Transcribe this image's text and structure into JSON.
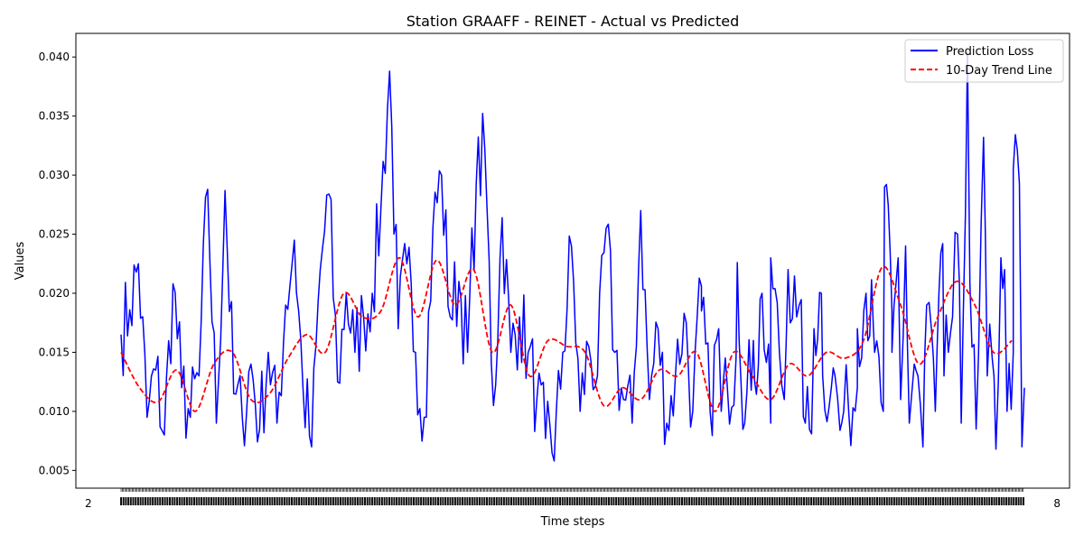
{
  "chart_data": {
    "type": "line",
    "title": "Station GRAAFF - REINET - Actual vs Predicted",
    "xlabel": "Time steps",
    "ylabel": "Values",
    "xlim": [
      0,
      730
    ],
    "ylim": [
      0.0035,
      0.042
    ],
    "yticks": [
      0.005,
      0.01,
      0.015,
      0.02,
      0.025,
      0.03,
      0.035,
      0.04
    ],
    "ytick_labels": [
      "0.005",
      "0.010",
      "0.015",
      "0.020",
      "0.025",
      "0.030",
      "0.035",
      "0.040"
    ],
    "xtick_left_label": "2",
    "xtick_right_label": "8",
    "grid": false,
    "legend": {
      "placement": "top-right"
    },
    "series": [
      {
        "name": "Prediction Loss",
        "color": "#0000ff",
        "style": "solid",
        "x": [
          0,
          7,
          14,
          21,
          28,
          35,
          42,
          49,
          56,
          63,
          70,
          77,
          84,
          91,
          98,
          105,
          112,
          119,
          126,
          133,
          140,
          147,
          154,
          161,
          168,
          175,
          182,
          189,
          196,
          203,
          210,
          217,
          224,
          231,
          238,
          245,
          252,
          259,
          266,
          273,
          280,
          287,
          294,
          301,
          308,
          315,
          322,
          329,
          336,
          343,
          350,
          357,
          364,
          371,
          378,
          385,
          392,
          399,
          406,
          413,
          420,
          427,
          434,
          441,
          448,
          455,
          462,
          469,
          476,
          483,
          490,
          497,
          504,
          511,
          518,
          525,
          532,
          539,
          546,
          553,
          560,
          567,
          574,
          581,
          588,
          595,
          602,
          609,
          616,
          623,
          630,
          637,
          644,
          651,
          658,
          665,
          672,
          679,
          686,
          693,
          700,
          707,
          714,
          721,
          728
        ],
        "y": [
          0.0165,
          0.0186,
          0.0225,
          0.0095,
          0.0135,
          0.008,
          0.0208,
          0.012,
          0.0095,
          0.013,
          0.0288,
          0.009,
          0.0287,
          0.0115,
          0.0095,
          0.014,
          0.0085,
          0.015,
          0.009,
          0.019,
          0.0245,
          0.012,
          0.007,
          0.022,
          0.0284,
          0.0125,
          0.02,
          0.015,
          0.018,
          0.02,
          0.0272,
          0.0388,
          0.017,
          0.0225,
          0.015,
          0.0095,
          0.0255,
          0.03,
          0.018,
          0.021,
          0.015,
          0.0293,
          0.0322,
          0.0105,
          0.0264,
          0.015,
          0.018,
          0.015,
          0.011,
          0.0077,
          0.0058,
          0.015,
          0.024,
          0.01,
          0.0155,
          0.013,
          0.0255,
          0.015,
          0.011,
          0.009,
          0.027,
          0.011,
          0.017,
          0.009,
          0.013,
          0.0183,
          0.01,
          0.0206,
          0.01,
          0.017,
          0.012,
          0.0145,
          0.009,
          0.016,
          0.02,
          0.009,
          0.015,
          0.022,
          0.018,
          0.009,
          0.017,
          0.013,
          0.012,
          0.0084,
          0.01,
          0.012,
          0.02,
          0.015,
          0.01,
          0.0185,
          0.011,
          0.009,
          0.013,
          0.019,
          0.01,
          0.013,
          0.018,
          0.009,
          0.0208,
          0.015,
          0.013,
          0.0068,
          0.022,
          0.015,
          0.007
        ],
        "peaks": [
          {
            "x": 469,
            "y": 0.0185
          },
          {
            "x": 485,
            "y": 0.01
          },
          {
            "x": 498,
            "y": 0.0226
          },
          {
            "x": 512,
            "y": 0.0125
          },
          {
            "x": 525,
            "y": 0.023
          },
          {
            "x": 536,
            "y": 0.011
          },
          {
            "x": 548,
            "y": 0.019
          },
          {
            "x": 558,
            "y": 0.0081
          },
          {
            "x": 566,
            "y": 0.02
          },
          {
            "x": 577,
            "y": 0.013
          },
          {
            "x": 584,
            "y": 0.01
          },
          {
            "x": 595,
            "y": 0.017
          },
          {
            "x": 608,
            "y": 0.017
          },
          {
            "x": 617,
            "y": 0.029
          },
          {
            "x": 623,
            "y": 0.015
          },
          {
            "x": 628,
            "y": 0.023
          },
          {
            "x": 634,
            "y": 0.024
          },
          {
            "x": 641,
            "y": 0.014
          },
          {
            "x": 648,
            "y": 0.007
          },
          {
            "x": 655,
            "y": 0.0168
          },
          {
            "x": 664,
            "y": 0.0242
          },
          {
            "x": 676,
            "y": 0.025
          },
          {
            "x": 684,
            "y": 0.0404
          },
          {
            "x": 691,
            "y": 0.0085
          },
          {
            "x": 697,
            "y": 0.0332
          },
          {
            "x": 704,
            "y": 0.0145
          },
          {
            "x": 711,
            "y": 0.023
          },
          {
            "x": 716,
            "y": 0.01
          },
          {
            "x": 721,
            "y": 0.0305
          },
          {
            "x": 726,
            "y": 0.0293
          },
          {
            "x": 730,
            "y": 0.012
          }
        ]
      },
      {
        "name": "10-Day Trend Line",
        "color": "#ff0000",
        "style": "dashed",
        "x": [
          0,
          15,
          30,
          45,
          60,
          75,
          90,
          105,
          120,
          135,
          150,
          165,
          180,
          195,
          210,
          225,
          240,
          255,
          270,
          285,
          300,
          315,
          330,
          345,
          360,
          375,
          390,
          405,
          420,
          435,
          450,
          465,
          480,
          495,
          510,
          525,
          540,
          555,
          570,
          585,
          600,
          615,
          630,
          645,
          660,
          675,
          690,
          705,
          720
        ],
        "y": [
          0.015,
          0.012,
          0.0108,
          0.0135,
          0.01,
          0.014,
          0.015,
          0.011,
          0.0115,
          0.0145,
          0.0165,
          0.015,
          0.02,
          0.018,
          0.0185,
          0.023,
          0.018,
          0.0228,
          0.019,
          0.022,
          0.015,
          0.019,
          0.013,
          0.016,
          0.0155,
          0.015,
          0.0105,
          0.012,
          0.011,
          0.0135,
          0.013,
          0.015,
          0.01,
          0.015,
          0.013,
          0.011,
          0.014,
          0.013,
          0.015,
          0.0145,
          0.016,
          0.0222,
          0.019,
          0.014,
          0.018,
          0.021,
          0.019,
          0.015,
          0.016
        ]
      }
    ]
  }
}
